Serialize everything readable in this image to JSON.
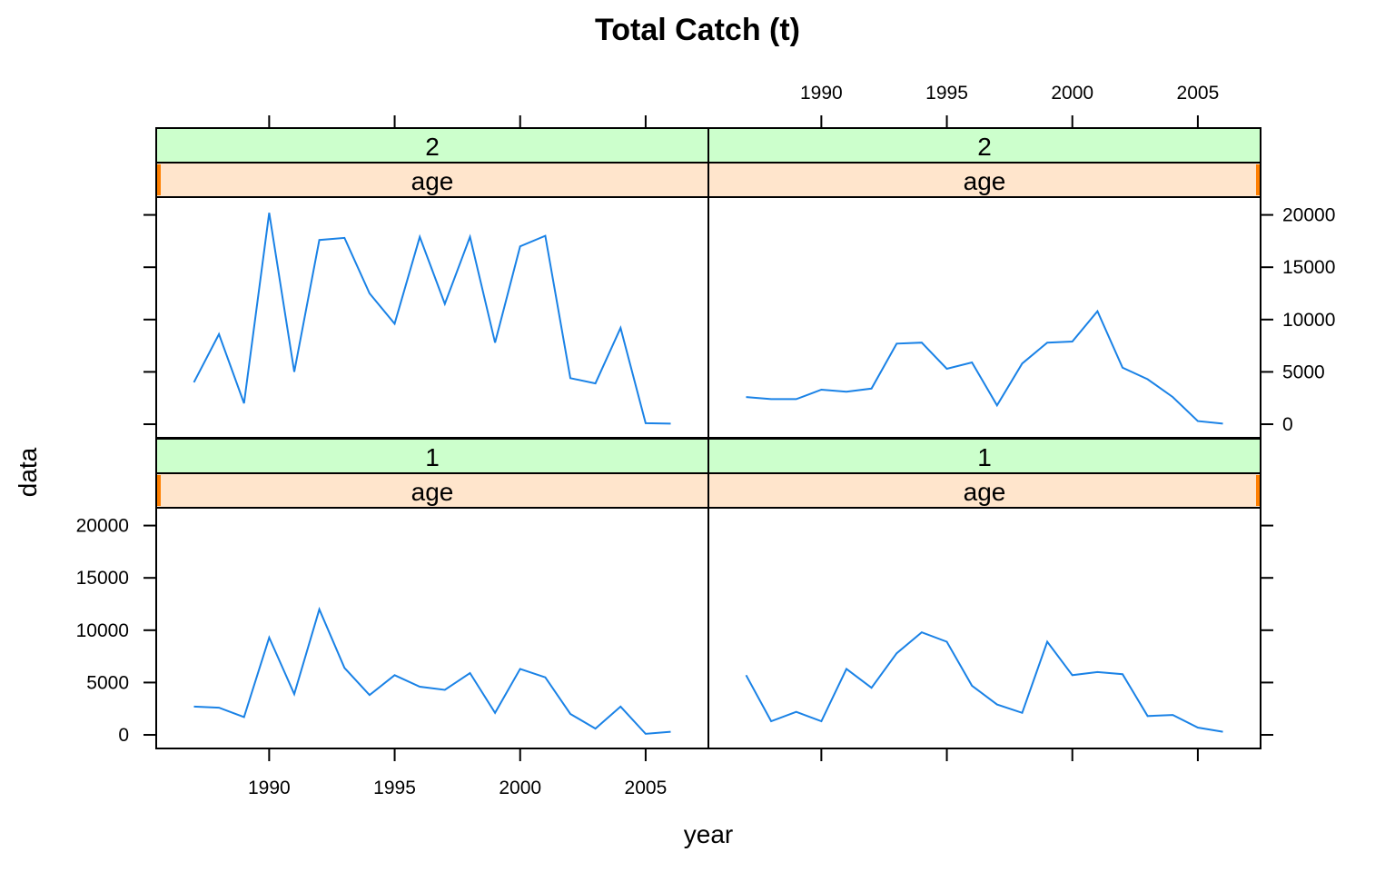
{
  "chart_data": {
    "type": "line",
    "title": "Total Catch (t)",
    "xlabel": "year",
    "ylabel": "data",
    "xlim": [
      1985.5,
      2007.5
    ],
    "ylim": [
      -1300,
      21700
    ],
    "x_ticks": [
      1990,
      1995,
      2000,
      2005
    ],
    "y_ticks": [
      0,
      5000,
      10000,
      15000,
      20000
    ],
    "grid": false,
    "line_color": "#1a82e6",
    "strip_colors": {
      "level": "#ccffcc",
      "factor": "#ffe5cc",
      "marker": "#ff7f00"
    },
    "panels": [
      {
        "strips": [
          "2",
          "age"
        ],
        "x": [
          1987,
          1988,
          1989,
          1990,
          1991,
          1992,
          1993,
          1994,
          1995,
          1996,
          1997,
          1998,
          1999,
          2000,
          2001,
          2002,
          2003,
          2004,
          2005,
          2006
        ],
        "y": [
          4000,
          8600,
          2000,
          20200,
          5000,
          17600,
          17800,
          12500,
          9600,
          17900,
          11500,
          17900,
          7800,
          17000,
          18000,
          4400,
          3900,
          9200,
          100,
          50
        ]
      },
      {
        "strips": [
          "2",
          "age"
        ],
        "x": [
          1987,
          1988,
          1989,
          1990,
          1991,
          1992,
          1993,
          1994,
          1995,
          1996,
          1997,
          1998,
          1999,
          2000,
          2001,
          2002,
          2003,
          2004,
          2005,
          2006
        ],
        "y": [
          2600,
          2400,
          2400,
          3300,
          3100,
          3400,
          7700,
          7800,
          5300,
          5900,
          1800,
          5800,
          7800,
          7900,
          10800,
          5400,
          4300,
          2600,
          300,
          50
        ]
      },
      {
        "strips": [
          "1",
          "age"
        ],
        "x": [
          1987,
          1988,
          1989,
          1990,
          1991,
          1992,
          1993,
          1994,
          1995,
          1996,
          1997,
          1998,
          1999,
          2000,
          2001,
          2002,
          2003,
          2004,
          2005,
          2006
        ],
        "y": [
          2700,
          2600,
          1700,
          9300,
          3900,
          12000,
          6400,
          3800,
          5700,
          4600,
          4300,
          5900,
          2100,
          6300,
          5500,
          2000,
          600,
          2700,
          100,
          300
        ]
      },
      {
        "strips": [
          "1",
          "age"
        ],
        "x": [
          1987,
          1988,
          1989,
          1990,
          1991,
          1992,
          1993,
          1994,
          1995,
          1996,
          1997,
          1998,
          1999,
          2000,
          2001,
          2002,
          2003,
          2004,
          2005,
          2006
        ],
        "y": [
          5700,
          1300,
          2200,
          1300,
          6300,
          4500,
          7800,
          9800,
          8900,
          4700,
          2900,
          2100,
          8900,
          5700,
          6000,
          5800,
          1800,
          1900,
          700,
          300
        ]
      }
    ]
  }
}
